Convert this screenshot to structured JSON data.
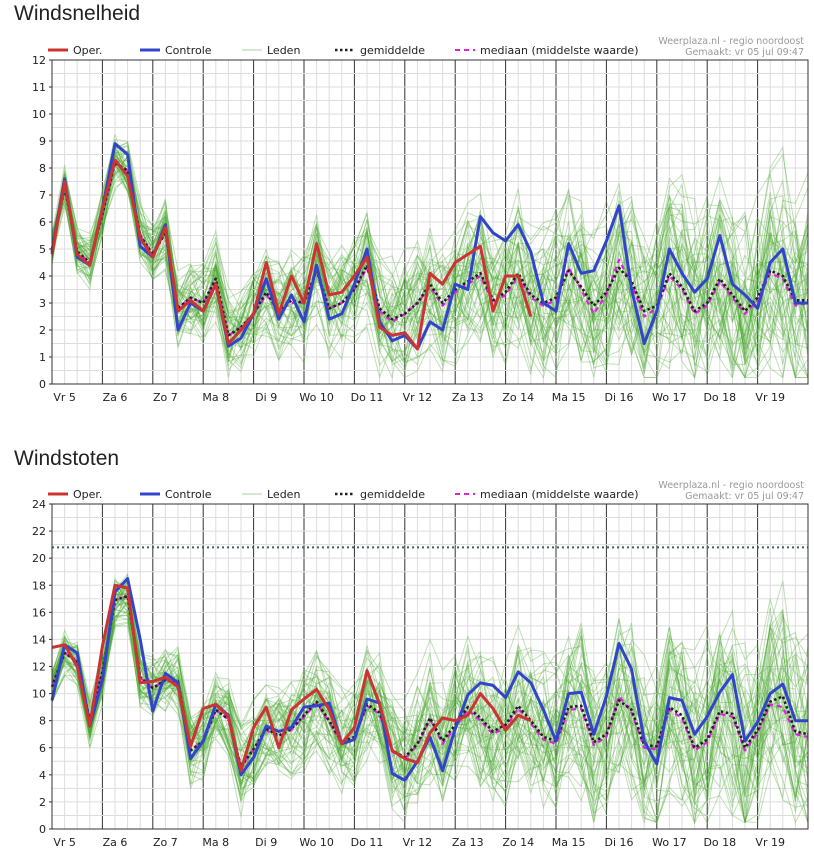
{
  "legend": {
    "oper": "Oper.",
    "controle": "Controle",
    "leden": "Leden",
    "gemiddelde": "gemiddelde",
    "mediaan": "mediaan (middelste waarde)"
  },
  "source": {
    "site": "Weerplaza.nl - regio noordoost",
    "made": "Gemaakt: vr 05 jul 09:47"
  },
  "colors": {
    "oper": "#cc3333",
    "controle": "#3344cc",
    "leden": "#4aa832",
    "gemiddelde": "#222222",
    "mediaan": "#dd22dd",
    "threshold": "#336666"
  },
  "chart_data": [
    {
      "type": "line",
      "title": "Windsnelheid",
      "ylim": [
        0,
        12
      ],
      "yticks": [
        0,
        1,
        2,
        3,
        4,
        5,
        6,
        7,
        8,
        9,
        10,
        11,
        12
      ],
      "xlim": [
        0,
        15
      ],
      "day_labels": [
        "Vr 5",
        "Za 6",
        "Zo 7",
        "Ma 8",
        "Di 9",
        "Wo 10",
        "Do 11",
        "Vr 12",
        "Za 13",
        "Zo 14",
        "Ma 15",
        "Di 16",
        "Wo 17",
        "Do 18",
        "Vr 19"
      ],
      "grid": true,
      "legend_position": "top",
      "series": [
        {
          "name": "Oper.",
          "x": [
            0.0,
            0.25,
            0.5,
            0.75,
            1.0,
            1.25,
            1.5,
            1.75,
            2.0,
            2.25,
            2.5,
            2.75,
            3.0,
            3.25,
            3.5,
            3.75,
            4.0,
            4.25,
            4.5,
            4.75,
            5.0,
            5.25,
            5.5,
            5.75,
            6.0,
            6.25,
            6.5,
            6.75,
            7.0,
            7.25,
            7.5,
            7.75,
            8.0,
            8.25,
            8.5,
            8.75,
            9.0,
            9.25,
            9.5
          ],
          "y": [
            4.8,
            7.5,
            4.8,
            4.4,
            6.5,
            8.3,
            7.7,
            5.4,
            4.7,
            5.8,
            2.7,
            3.1,
            2.7,
            3.7,
            1.5,
            2.0,
            2.6,
            4.5,
            2.6,
            4.0,
            3.0,
            5.2,
            3.3,
            3.4,
            4.0,
            4.7,
            2.1,
            1.8,
            1.9,
            1.3,
            4.1,
            3.7,
            4.5,
            4.8,
            5.1,
            2.7,
            4.0,
            4.0,
            2.5
          ]
        },
        {
          "name": "Controle",
          "x": [
            0.0,
            0.25,
            0.5,
            0.75,
            1.0,
            1.25,
            1.5,
            1.75,
            2.0,
            2.25,
            2.5,
            2.75,
            3.0,
            3.25,
            3.5,
            3.75,
            4.0,
            4.25,
            4.5,
            4.75,
            5.0,
            5.25,
            5.5,
            5.75,
            6.0,
            6.25,
            6.5,
            6.75,
            7.0,
            7.25,
            7.5,
            7.75,
            8.0,
            8.25,
            8.5,
            8.75,
            9.0,
            9.25,
            9.5,
            9.75,
            10.0,
            10.25,
            10.5,
            10.75,
            11.0,
            11.25,
            11.5,
            11.75,
            12.0,
            12.25,
            12.5,
            12.75,
            13.0,
            13.25,
            13.5,
            13.75,
            14.0,
            14.25,
            14.5,
            14.75,
            15.0
          ],
          "y": [
            4.9,
            7.6,
            4.7,
            4.4,
            6.5,
            8.9,
            8.5,
            5.1,
            4.7,
            5.9,
            2.0,
            3.0,
            2.7,
            3.7,
            1.4,
            1.7,
            2.6,
            3.9,
            2.4,
            3.3,
            2.3,
            4.4,
            2.4,
            2.6,
            3.7,
            5.0,
            2.3,
            1.6,
            1.8,
            1.3,
            2.3,
            2.0,
            3.7,
            3.5,
            6.2,
            5.6,
            5.3,
            5.9,
            4.9,
            3.0,
            2.7,
            5.2,
            4.1,
            4.2,
            5.3,
            6.6,
            3.5,
            1.5,
            2.7,
            5.0,
            4.1,
            3.4,
            3.9,
            5.5,
            3.7,
            3.3,
            2.8,
            4.5,
            5.0,
            3.0,
            3.0
          ]
        },
        {
          "name": "gemiddelde",
          "x": [
            0.0,
            0.25,
            0.5,
            0.75,
            1.0,
            1.25,
            1.5,
            1.75,
            2.0,
            2.25,
            2.5,
            2.75,
            3.0,
            3.25,
            3.5,
            3.75,
            4.0,
            4.25,
            4.5,
            4.75,
            5.0,
            5.25,
            5.5,
            5.75,
            6.0,
            6.25,
            6.5,
            6.75,
            7.0,
            7.25,
            7.5,
            7.75,
            8.0,
            8.25,
            8.5,
            8.75,
            9.0,
            9.25,
            9.5,
            9.75,
            10.0,
            10.25,
            10.5,
            10.75,
            11.0,
            11.25,
            11.5,
            11.75,
            12.0,
            12.25,
            12.5,
            12.75,
            13.0,
            13.25,
            13.5,
            13.75,
            14.0,
            14.25,
            14.5,
            14.75,
            15.0
          ],
          "y": [
            5.0,
            7.3,
            4.9,
            4.5,
            6.3,
            8.2,
            7.9,
            5.5,
            4.8,
            5.6,
            2.8,
            3.2,
            3.0,
            3.9,
            1.8,
            2.1,
            2.6,
            3.4,
            2.7,
            3.1,
            3.0,
            4.2,
            2.8,
            3.0,
            3.5,
            4.4,
            2.8,
            2.4,
            2.6,
            3.0,
            3.7,
            3.0,
            3.5,
            3.8,
            4.1,
            3.1,
            3.4,
            4.1,
            3.3,
            3.0,
            3.2,
            4.2,
            3.6,
            2.9,
            3.4,
            4.3,
            3.8,
            2.7,
            2.9,
            4.1,
            3.6,
            2.7,
            3.0,
            3.9,
            3.3,
            2.7,
            3.2,
            4.2,
            4.0,
            3.1,
            3.1
          ]
        },
        {
          "name": "mediaan (middelste waarde)",
          "x": [
            0.0,
            0.25,
            0.5,
            0.75,
            1.0,
            1.25,
            1.5,
            1.75,
            2.0,
            2.25,
            2.5,
            2.75,
            3.0,
            3.25,
            3.5,
            3.75,
            4.0,
            4.25,
            4.5,
            4.75,
            5.0,
            5.25,
            5.5,
            5.75,
            6.0,
            6.25,
            6.5,
            6.75,
            7.0,
            7.25,
            7.5,
            7.75,
            8.0,
            8.25,
            8.5,
            8.75,
            9.0,
            9.25,
            9.5,
            9.75,
            10.0,
            10.25,
            10.5,
            10.75,
            11.0,
            11.25,
            11.5,
            11.75,
            12.0,
            12.25,
            12.5,
            12.75,
            13.0,
            13.25,
            13.5,
            13.75,
            14.0,
            14.25,
            14.5,
            14.75,
            15.0
          ],
          "y": [
            5.0,
            7.3,
            4.9,
            4.5,
            6.3,
            8.2,
            7.9,
            5.5,
            4.8,
            5.6,
            2.8,
            3.2,
            3.0,
            3.8,
            1.8,
            2.1,
            2.6,
            3.3,
            2.7,
            3.0,
            3.0,
            4.2,
            2.8,
            3.0,
            3.5,
            4.3,
            2.7,
            2.3,
            2.6,
            3.0,
            3.6,
            2.9,
            3.4,
            3.7,
            4.0,
            3.0,
            3.3,
            4.0,
            3.2,
            2.9,
            3.1,
            4.3,
            3.5,
            2.6,
            3.3,
            4.6,
            3.7,
            2.5,
            2.8,
            4.0,
            3.5,
            2.6,
            2.9,
            3.8,
            3.2,
            2.6,
            3.1,
            4.1,
            3.9,
            2.9,
            3.0
          ]
        }
      ]
    },
    {
      "type": "line",
      "title": "Windstoten",
      "ylim": [
        0,
        24
      ],
      "yticks": [
        0,
        2,
        4,
        6,
        8,
        10,
        12,
        14,
        16,
        18,
        20,
        22,
        24
      ],
      "xlim": [
        0,
        15
      ],
      "day_labels": [
        "Vr 5",
        "Za 6",
        "Zo 7",
        "Ma 8",
        "Di 9",
        "Wo 10",
        "Do 11",
        "Vr 12",
        "Za 13",
        "Zo 14",
        "Ma 15",
        "Di 16",
        "Wo 17",
        "Do 18",
        "Vr 19"
      ],
      "grid": true,
      "legend_position": "top",
      "threshold": 20.8,
      "series": [
        {
          "name": "Oper.",
          "x": [
            0.0,
            0.25,
            0.5,
            0.75,
            1.0,
            1.25,
            1.5,
            1.75,
            2.0,
            2.25,
            2.5,
            2.75,
            3.0,
            3.25,
            3.5,
            3.75,
            4.0,
            4.25,
            4.5,
            4.75,
            5.0,
            5.25,
            5.5,
            5.75,
            6.0,
            6.25,
            6.5,
            6.75,
            7.0,
            7.25,
            7.5,
            7.75,
            8.0,
            8.25,
            8.5,
            8.75,
            9.0,
            9.25,
            9.5
          ],
          "y": [
            13.4,
            13.6,
            12.0,
            7.6,
            13.5,
            18.0,
            17.8,
            10.8,
            10.9,
            11.2,
            10.5,
            6.1,
            8.9,
            9.2,
            8.3,
            4.3,
            7.5,
            9.0,
            6.0,
            8.8,
            9.6,
            10.3,
            8.8,
            6.3,
            7.5,
            11.7,
            9.2,
            5.8,
            5.2,
            4.9,
            7.1,
            8.2,
            8.0,
            8.4,
            10.0,
            8.9,
            7.3,
            8.4,
            8.0
          ]
        },
        {
          "name": "Controle",
          "x": [
            0.0,
            0.25,
            0.5,
            0.75,
            1.0,
            1.25,
            1.5,
            1.75,
            2.0,
            2.25,
            2.5,
            2.75,
            3.0,
            3.25,
            3.5,
            3.75,
            4.0,
            4.25,
            4.5,
            4.75,
            5.0,
            5.25,
            5.5,
            5.75,
            6.0,
            6.25,
            6.5,
            6.75,
            7.0,
            7.25,
            7.5,
            7.75,
            8.0,
            8.25,
            8.5,
            8.75,
            9.0,
            9.25,
            9.5,
            9.75,
            10.0,
            10.25,
            10.5,
            10.75,
            11.0,
            11.25,
            11.5,
            11.75,
            12.0,
            12.25,
            12.5,
            12.75,
            13.0,
            13.25,
            13.5,
            13.75,
            14.0,
            14.25,
            14.5,
            14.75,
            15.0
          ],
          "y": [
            9.5,
            13.6,
            13.0,
            7.6,
            11.0,
            17.5,
            18.5,
            14.0,
            8.7,
            11.5,
            10.8,
            5.2,
            6.5,
            9.2,
            8.4,
            4.0,
            5.3,
            7.6,
            7.2,
            7.5,
            9.0,
            9.1,
            9.3,
            6.3,
            6.6,
            9.6,
            9.3,
            4.1,
            3.6,
            5.0,
            6.8,
            4.3,
            7.4,
            9.9,
            10.8,
            10.6,
            9.7,
            11.6,
            10.8,
            8.8,
            6.5,
            10.0,
            10.1,
            7.0,
            9.8,
            13.7,
            11.8,
            6.5,
            4.8,
            9.7,
            9.5,
            7.0,
            8.3,
            10.1,
            11.4,
            6.5,
            7.9,
            10.0,
            10.7,
            8.0,
            8.0
          ]
        },
        {
          "name": "gemiddelde",
          "x": [
            0.0,
            0.25,
            0.5,
            0.75,
            1.0,
            1.25,
            1.5,
            1.75,
            2.0,
            2.25,
            2.5,
            2.75,
            3.0,
            3.25,
            3.5,
            3.75,
            4.0,
            4.25,
            4.5,
            4.75,
            5.0,
            5.25,
            5.5,
            5.75,
            6.0,
            6.25,
            6.5,
            6.75,
            7.0,
            7.25,
            7.5,
            7.75,
            8.0,
            8.25,
            8.5,
            8.75,
            9.0,
            9.25,
            9.5,
            9.75,
            10.0,
            10.25,
            10.5,
            10.75,
            11.0,
            11.25,
            11.5,
            11.75,
            12.0,
            12.25,
            12.5,
            12.75,
            13.0,
            13.25,
            13.5,
            13.75,
            14.0,
            14.25,
            14.5,
            14.75,
            15.0
          ],
          "y": [
            10.5,
            13.0,
            12.4,
            8.0,
            11.6,
            16.9,
            17.2,
            11.2,
            10.4,
            11.0,
            10.9,
            5.8,
            6.5,
            8.8,
            8.1,
            4.6,
            5.9,
            7.4,
            6.9,
            7.4,
            8.4,
            9.4,
            8.0,
            6.4,
            6.8,
            9.2,
            8.6,
            5.8,
            5.3,
            6.3,
            8.2,
            6.5,
            7.7,
            9.0,
            8.2,
            7.2,
            7.7,
            9.1,
            8.0,
            6.8,
            6.5,
            9.0,
            9.1,
            6.4,
            7.0,
            9.5,
            8.8,
            6.2,
            6.1,
            9.0,
            8.4,
            6.0,
            6.6,
            8.7,
            8.5,
            6.0,
            7.3,
            9.4,
            9.8,
            7.2,
            7.0
          ]
        },
        {
          "name": "mediaan (middelste waarde)",
          "x": [
            0.0,
            0.25,
            0.5,
            0.75,
            1.0,
            1.25,
            1.5,
            1.75,
            2.0,
            2.25,
            2.5,
            2.75,
            3.0,
            3.25,
            3.5,
            3.75,
            4.0,
            4.25,
            4.5,
            4.75,
            5.0,
            5.25,
            5.5,
            5.75,
            6.0,
            6.25,
            6.5,
            6.75,
            7.0,
            7.25,
            7.5,
            7.75,
            8.0,
            8.25,
            8.5,
            8.75,
            9.0,
            9.25,
            9.5,
            9.75,
            10.0,
            10.25,
            10.5,
            10.75,
            11.0,
            11.25,
            11.5,
            11.75,
            12.0,
            12.25,
            12.5,
            12.75,
            13.0,
            13.25,
            13.5,
            13.75,
            14.0,
            14.25,
            14.5,
            14.75,
            15.0
          ],
          "y": [
            10.5,
            13.0,
            12.4,
            8.0,
            11.6,
            16.9,
            17.2,
            11.2,
            10.4,
            11.0,
            10.9,
            5.8,
            6.5,
            8.8,
            8.1,
            4.6,
            5.9,
            7.3,
            6.8,
            7.3,
            8.3,
            9.3,
            7.9,
            6.3,
            6.7,
            9.1,
            8.5,
            5.7,
            5.2,
            6.2,
            8.1,
            6.3,
            7.5,
            8.8,
            8.0,
            7.0,
            7.5,
            8.9,
            7.8,
            6.6,
            6.3,
            8.8,
            8.9,
            6.2,
            6.8,
            9.8,
            8.6,
            6.0,
            5.9,
            8.8,
            8.2,
            5.8,
            6.4,
            8.5,
            8.3,
            5.8,
            7.1,
            9.2,
            9.0,
            7.0,
            6.8
          ]
        }
      ]
    }
  ]
}
